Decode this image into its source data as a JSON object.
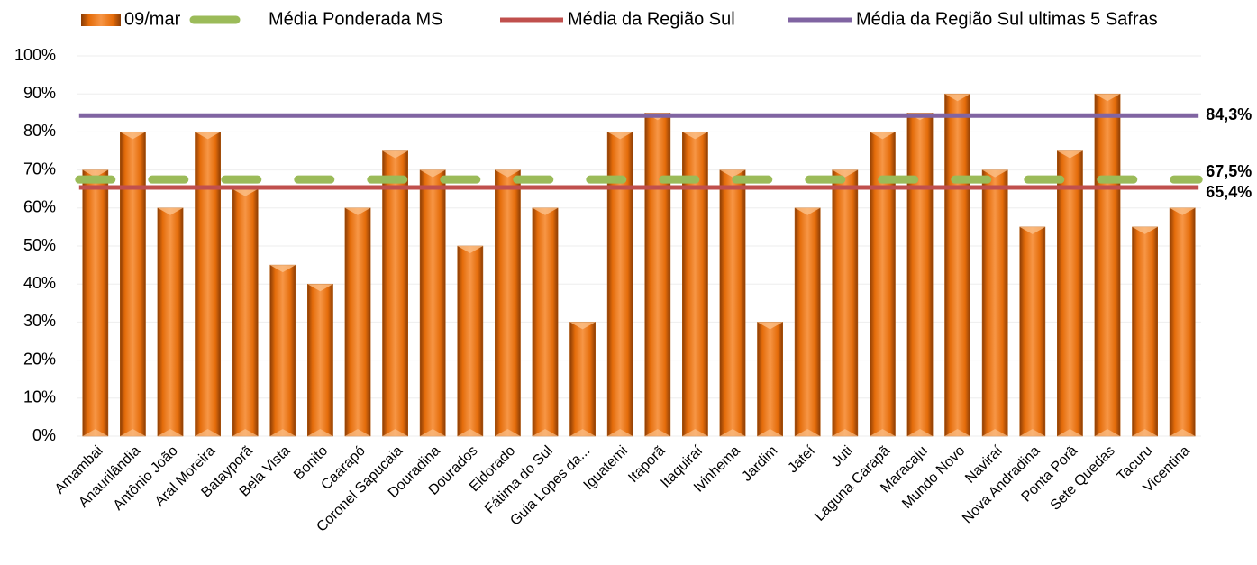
{
  "chart_data": {
    "type": "bar",
    "categories": [
      "Amambai",
      "Anaurilândia",
      "Antônio João",
      "Aral Moreira",
      "Batayporã",
      "Bela Vista",
      "Bonito",
      "Caarapó",
      "Coronel Sapucaia",
      "Douradina",
      "Dourados",
      "Eldorado",
      "Fátima do Sul",
      "Guia Lopes da...",
      "Iguatemi",
      "Itaporã",
      "Itaquiraí",
      "Ivinhema",
      "Jardim",
      "Jateí",
      "Juti",
      "Laguna Carapã",
      "Maracaju",
      "Mundo Novo",
      "Naviraí",
      "Nova Andradina",
      "Ponta Porã",
      "Sete Quedas",
      "Tacuru",
      "Vicentina"
    ],
    "series": [
      {
        "name": "09/mar",
        "color": "#e46c0a",
        "values": [
          70,
          80,
          60,
          80,
          65,
          45,
          40,
          60,
          75,
          70,
          50,
          70,
          60,
          30,
          80,
          85,
          80,
          70,
          30,
          60,
          70,
          80,
          85,
          90,
          70,
          55,
          75,
          90,
          55,
          60
        ]
      }
    ],
    "reference_lines": [
      {
        "name": "Média Ponderada MS",
        "color": "#9bbb59",
        "style": "dashed",
        "value": 67.5,
        "value_label": "67,5%"
      },
      {
        "name": "Média da Região Sul",
        "color": "#c0504d",
        "style": "solid",
        "value": 65.4,
        "value_label": "65,4%"
      },
      {
        "name": "Média da Região Sul ultimas 5 Safras",
        "color": "#8064a2",
        "style": "solid",
        "value": 84.3,
        "value_label": "84,3%"
      }
    ],
    "ylim": [
      0,
      100
    ],
    "yticks": [
      {
        "value": 0,
        "label": "0%"
      },
      {
        "value": 10,
        "label": "10%"
      },
      {
        "value": 20,
        "label": "20%"
      },
      {
        "value": 30,
        "label": "30%"
      },
      {
        "value": 40,
        "label": "40%"
      },
      {
        "value": 50,
        "label": "50%"
      },
      {
        "value": 60,
        "label": "60%"
      },
      {
        "value": 70,
        "label": "70%"
      },
      {
        "value": 80,
        "label": "80%"
      },
      {
        "value": 90,
        "label": "90%"
      },
      {
        "value": 100,
        "label": "100%"
      }
    ],
    "grid": true
  }
}
